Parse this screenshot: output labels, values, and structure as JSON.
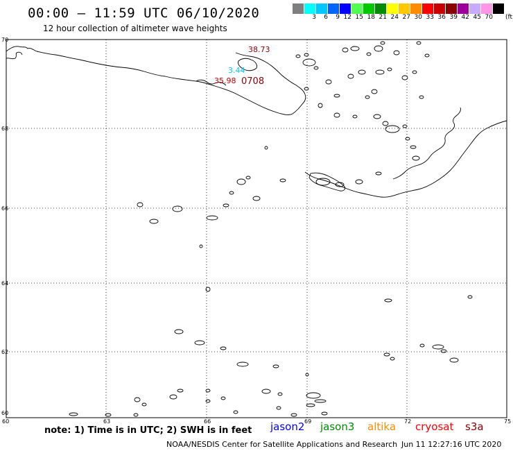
{
  "header": {
    "title": "00:00 – 11:59 UTC 06/10/2020",
    "subtitle": "12 hour collection of altimeter wave heights"
  },
  "colorbar": {
    "unit": "(ft)",
    "entries": [
      {
        "label": "",
        "color": "#7f7f7f"
      },
      {
        "label": "3",
        "color": "#00ffff"
      },
      {
        "label": "6",
        "color": "#00c8ff"
      },
      {
        "label": "9",
        "color": "#0064ff"
      },
      {
        "label": "12",
        "color": "#0000ff"
      },
      {
        "label": "15",
        "color": "#50ff50"
      },
      {
        "label": "18",
        "color": "#00c800"
      },
      {
        "label": "21",
        "color": "#008c00"
      },
      {
        "label": "24",
        "color": "#ffff00"
      },
      {
        "label": "27",
        "color": "#ffc800"
      },
      {
        "label": "30",
        "color": "#ff8c00"
      },
      {
        "label": "33",
        "color": "#ff0000"
      },
      {
        "label": "36",
        "color": "#c80000"
      },
      {
        "label": "39",
        "color": "#8b0000"
      },
      {
        "label": "42",
        "color": "#9b009b"
      },
      {
        "label": "45",
        "color": "#c8aaff"
      },
      {
        "label": "70",
        "color": "#ff96e6"
      },
      {
        "label": "",
        "color": "#000000"
      }
    ]
  },
  "map": {
    "lat_labels": [
      "70",
      "68",
      "66",
      "64",
      "62",
      "60"
    ],
    "lon_labels": [
      "60",
      "63",
      "66",
      "69",
      "72",
      "75"
    ],
    "annotations": [
      {
        "text": "38.73",
        "color": "#8b0000"
      },
      {
        "text": "3.44",
        "color": "#00c8ff"
      },
      {
        "text": "35.98",
        "color": "#c80000"
      },
      {
        "text": "0708",
        "color": "#8b0000"
      }
    ]
  },
  "footer": {
    "note": "note:  1) Time is in UTC;  2) SWH is in feet",
    "legend": [
      {
        "name": "jason2",
        "color": "#0000ff"
      },
      {
        "name": "jason3",
        "color": "#008c00"
      },
      {
        "name": "altika",
        "color": "#ff8c00"
      },
      {
        "name": "cryosat",
        "color": "#ff0000"
      },
      {
        "name": "s3a",
        "color": "#8b0000"
      }
    ],
    "credit": "NOAA/NESDIS Center for Satellite Applications and Research",
    "timestamp": "Jun 11 12:27:16 UTC 2020"
  }
}
